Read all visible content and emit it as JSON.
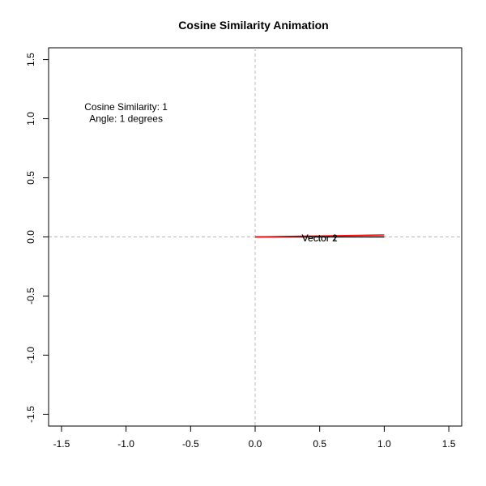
{
  "chart_data": {
    "type": "line",
    "title": "Cosine Similarity Animation",
    "xlabel": "",
    "ylabel": "",
    "xlim": [
      -1.6,
      1.6
    ],
    "ylim": [
      -1.6,
      1.6
    ],
    "x_ticks": [
      -1.5,
      -1.0,
      -0.5,
      0.0,
      0.5,
      1.0,
      1.5
    ],
    "x_tick_labels": [
      "-1.5",
      "-1.0",
      "-0.5",
      "0.0",
      "0.5",
      "1.0",
      "1.5"
    ],
    "y_ticks": [
      -1.5,
      -1.0,
      -0.5,
      0.0,
      0.5,
      1.0,
      1.5
    ],
    "y_tick_labels": [
      "-1.5",
      "-1.0",
      "-0.5",
      "0.0",
      "0.5",
      "1.0",
      "1.5"
    ],
    "grid": false,
    "reference_lines": [
      {
        "orientation": "vertical",
        "value": 0,
        "color": "#bbbbbb",
        "style": "dashed"
      },
      {
        "orientation": "horizontal",
        "value": 0,
        "color": "#bbbbbb",
        "style": "dashed"
      }
    ],
    "series": [
      {
        "name": "Vector 1",
        "color": "#000000",
        "points": [
          [
            0,
            0
          ],
          [
            1.0,
            0.0
          ]
        ],
        "label_at": [
          0.5,
          -0.01
        ]
      },
      {
        "name": "Vector 2",
        "color": "#ff0000",
        "points": [
          [
            0,
            0
          ],
          [
            0.99985,
            0.01745
          ]
        ],
        "label_at": [
          0.5,
          -0.01
        ]
      }
    ],
    "annotations": [
      {
        "text": "Cosine Similarity: 1",
        "x": -1.0,
        "y": 1.1
      },
      {
        "text": "Angle: 1 degrees",
        "x": -1.0,
        "y": 1.0
      }
    ]
  }
}
